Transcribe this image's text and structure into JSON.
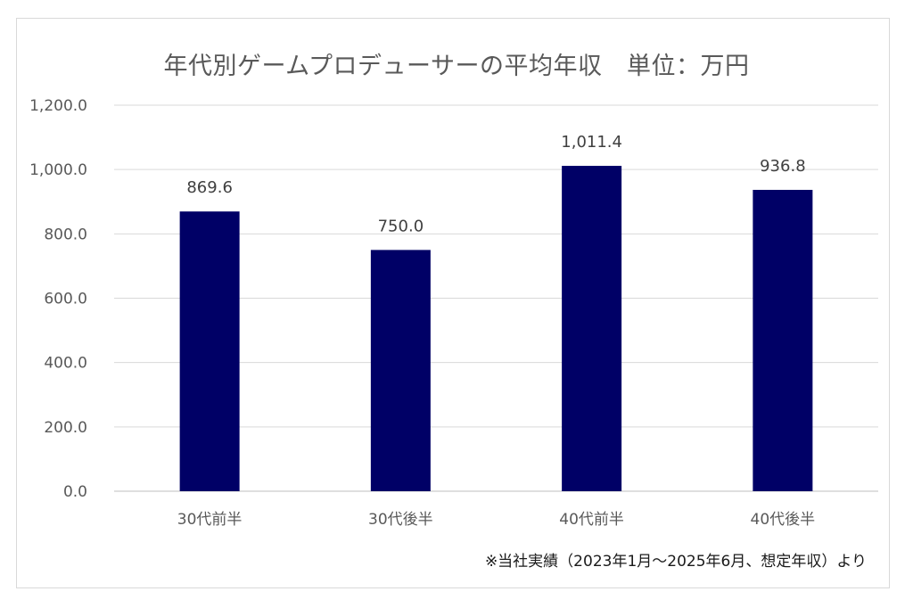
{
  "chart_data": {
    "type": "bar",
    "title": "年代別ゲームプロデューサーの平均年収　単位：万円",
    "categories": [
      "30代前半",
      "30代後半",
      "40代前半",
      "40代後半"
    ],
    "values": [
      869.6,
      750.0,
      1011.4,
      936.8
    ],
    "data_labels": [
      "869.6",
      "750.0",
      "1,011.4",
      "936.8"
    ],
    "y_ticks": [
      0,
      200,
      400,
      600,
      800,
      1000,
      1200
    ],
    "y_tick_labels": [
      "0.0",
      "200.0",
      "400.0",
      "600.0",
      "800.0",
      "1,000.0",
      "1,200.0"
    ],
    "ylim": [
      0,
      1200
    ],
    "xlabel": "",
    "ylabel": "",
    "grid": true,
    "legend": "none",
    "bar_color": "#000066",
    "source_note": "※当社実績（2023年1月～2025年6月、想定年収）より"
  }
}
